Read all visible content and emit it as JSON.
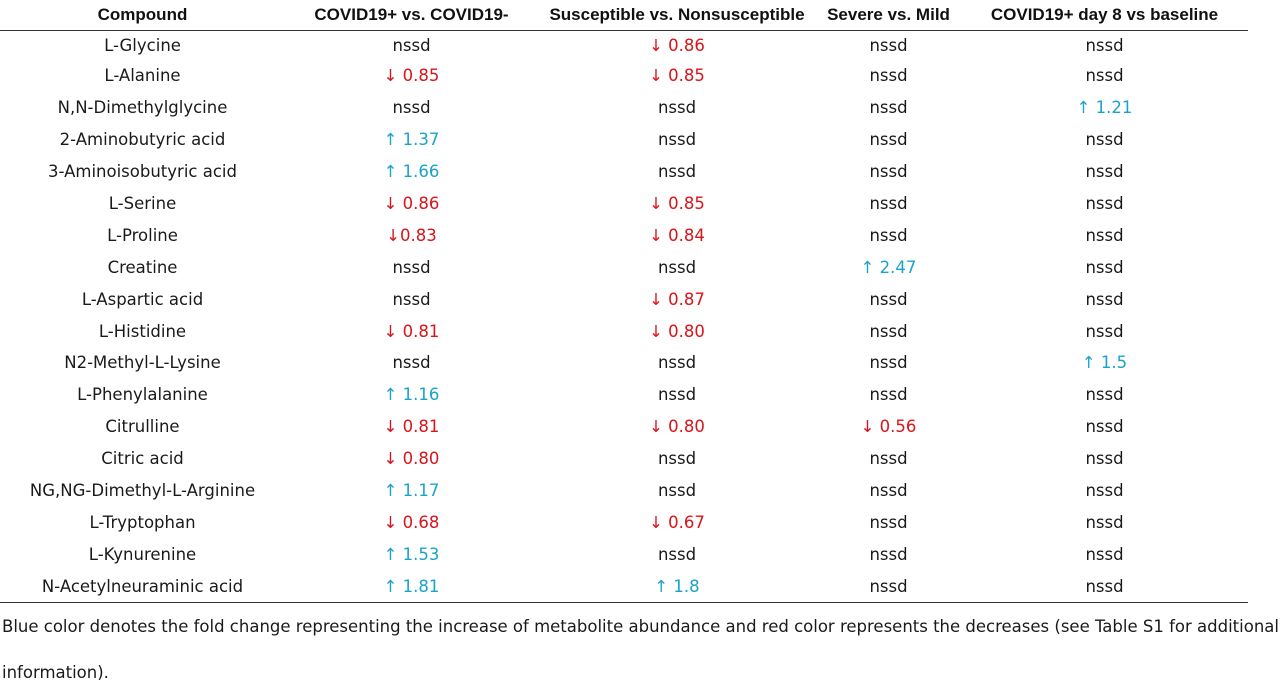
{
  "table": {
    "headers": [
      "Compound",
      "COVID19+ vs. COVID19-",
      "Susceptible vs. Nonsusceptible",
      "Severe vs. Mild",
      "COVID19+ day 8 vs baseline"
    ],
    "rows": [
      {
        "compound": "L-Glycine",
        "cells": [
          {
            "dir": "none",
            "text": "nssd"
          },
          {
            "dir": "down",
            "text": "↓ 0.86"
          },
          {
            "dir": "none",
            "text": "nssd"
          },
          {
            "dir": "none",
            "text": "nssd"
          }
        ]
      },
      {
        "compound": "L-Alanine",
        "cells": [
          {
            "dir": "down",
            "text": "↓ 0.85"
          },
          {
            "dir": "down",
            "text": "↓ 0.85"
          },
          {
            "dir": "none",
            "text": "nssd"
          },
          {
            "dir": "none",
            "text": "nssd"
          }
        ]
      },
      {
        "compound": "N,N-Dimethylglycine",
        "cells": [
          {
            "dir": "none",
            "text": "nssd"
          },
          {
            "dir": "none",
            "text": "nssd"
          },
          {
            "dir": "none",
            "text": "nssd"
          },
          {
            "dir": "up",
            "text": "↑ 1.21"
          }
        ]
      },
      {
        "compound": "2-Aminobutyric acid",
        "cells": [
          {
            "dir": "up",
            "text": "↑ 1.37"
          },
          {
            "dir": "none",
            "text": "nssd"
          },
          {
            "dir": "none",
            "text": "nssd"
          },
          {
            "dir": "none",
            "text": "nssd"
          }
        ]
      },
      {
        "compound": "3-Aminoisobutyric acid",
        "cells": [
          {
            "dir": "up",
            "text": "↑ 1.66"
          },
          {
            "dir": "none",
            "text": "nssd"
          },
          {
            "dir": "none",
            "text": "nssd"
          },
          {
            "dir": "none",
            "text": "nssd"
          }
        ]
      },
      {
        "compound": "L-Serine",
        "cells": [
          {
            "dir": "down",
            "text": "↓ 0.86"
          },
          {
            "dir": "down",
            "text": "↓ 0.85"
          },
          {
            "dir": "none",
            "text": "nssd"
          },
          {
            "dir": "none",
            "text": "nssd"
          }
        ]
      },
      {
        "compound": "L-Proline",
        "cells": [
          {
            "dir": "down",
            "text": "↓0.83"
          },
          {
            "dir": "down",
            "text": "↓ 0.84"
          },
          {
            "dir": "none",
            "text": "nssd"
          },
          {
            "dir": "none",
            "text": "nssd"
          }
        ]
      },
      {
        "compound": "Creatine",
        "cells": [
          {
            "dir": "none",
            "text": "nssd"
          },
          {
            "dir": "none",
            "text": "nssd"
          },
          {
            "dir": "up",
            "text": "↑ 2.47"
          },
          {
            "dir": "none",
            "text": "nssd"
          }
        ]
      },
      {
        "compound": "L-Aspartic acid",
        "cells": [
          {
            "dir": "none",
            "text": "nssd"
          },
          {
            "dir": "down",
            "text": "↓ 0.87"
          },
          {
            "dir": "none",
            "text": "nssd"
          },
          {
            "dir": "none",
            "text": "nssd"
          }
        ]
      },
      {
        "compound": "L-Histidine",
        "cells": [
          {
            "dir": "down",
            "text": "↓ 0.81"
          },
          {
            "dir": "down",
            "text": "↓ 0.80"
          },
          {
            "dir": "none",
            "text": "nssd"
          },
          {
            "dir": "none",
            "text": "nssd"
          }
        ]
      },
      {
        "compound": "N2-Methyl-L-Lysine",
        "cells": [
          {
            "dir": "none",
            "text": "nssd"
          },
          {
            "dir": "none",
            "text": "nssd"
          },
          {
            "dir": "none",
            "text": "nssd"
          },
          {
            "dir": "up",
            "text": "↑ 1.5"
          }
        ]
      },
      {
        "compound": "L-Phenylalanine",
        "cells": [
          {
            "dir": "up",
            "text": "↑ 1.16"
          },
          {
            "dir": "none",
            "text": "nssd"
          },
          {
            "dir": "none",
            "text": "nssd"
          },
          {
            "dir": "none",
            "text": "nssd"
          }
        ]
      },
      {
        "compound": "Citrulline",
        "cells": [
          {
            "dir": "down",
            "text": "↓ 0.81"
          },
          {
            "dir": "down",
            "text": "↓ 0.80"
          },
          {
            "dir": "down",
            "text": "↓ 0.56"
          },
          {
            "dir": "none",
            "text": "nssd"
          }
        ]
      },
      {
        "compound": "Citric acid",
        "cells": [
          {
            "dir": "down",
            "text": "↓ 0.80"
          },
          {
            "dir": "none",
            "text": "nssd"
          },
          {
            "dir": "none",
            "text": "nssd"
          },
          {
            "dir": "none",
            "text": "nssd"
          }
        ]
      },
      {
        "compound": "NG,NG-Dimethyl-L-Arginine",
        "cells": [
          {
            "dir": "up",
            "text": "↑ 1.17"
          },
          {
            "dir": "none",
            "text": "nssd"
          },
          {
            "dir": "none",
            "text": "nssd"
          },
          {
            "dir": "none",
            "text": "nssd"
          }
        ]
      },
      {
        "compound": "L-Tryptophan",
        "cells": [
          {
            "dir": "down",
            "text": "↓ 0.68"
          },
          {
            "dir": "down",
            "text": "↓ 0.67"
          },
          {
            "dir": "none",
            "text": "nssd"
          },
          {
            "dir": "none",
            "text": "nssd"
          }
        ]
      },
      {
        "compound": "L-Kynurenine",
        "cells": [
          {
            "dir": "up",
            "text": "↑ 1.53"
          },
          {
            "dir": "none",
            "text": "nssd"
          },
          {
            "dir": "none",
            "text": "nssd"
          },
          {
            "dir": "none",
            "text": "nssd"
          }
        ]
      },
      {
        "compound": "N-Acetylneuraminic acid",
        "cells": [
          {
            "dir": "up",
            "text": "↑ 1.81"
          },
          {
            "dir": "up",
            "text": "↑ 1.8"
          },
          {
            "dir": "none",
            "text": "nssd"
          },
          {
            "dir": "none",
            "text": "nssd"
          }
        ]
      }
    ]
  },
  "footnote": "Blue color denotes the fold change representing the increase of metabolite abundance and red color represents the decreases (see Table S1 for additional information).",
  "colors": {
    "increase": "#1aa3c9",
    "decrease": "#d9141b",
    "text": "#1a1a1a"
  }
}
